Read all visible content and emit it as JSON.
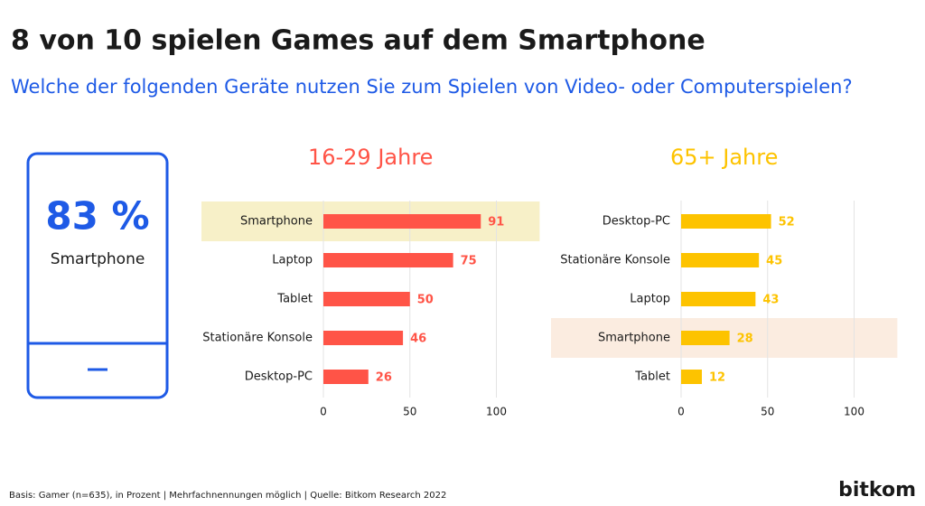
{
  "title": "8 von 10 spielen Games auf dem Smartphone",
  "subtitle": "Welche der folgenden Geräte nutzen Sie zum Spielen von Video- oder Computerspielen?",
  "kpi": {
    "label": "83 %",
    "caption": "Smartphone"
  },
  "footer": "Basis: Gamer (n=635), in Prozent | Mehrfachnennungen möglich | Quelle: Bitkom Research 2022",
  "logo": "bitkom",
  "chart_data": [
    {
      "type": "bar",
      "orientation": "horizontal",
      "title": "16-29 Jahre",
      "categories": [
        "Smartphone",
        "Laptop",
        "Tablet",
        "Stationäre Konsole",
        "Desktop-PC"
      ],
      "values": [
        91,
        75,
        50,
        46,
        26
      ],
      "color": "#ff5447",
      "highlight": "Smartphone",
      "highlight_color": "#f7f0c8",
      "xlim": [
        0,
        125
      ],
      "xticks": [
        0,
        50,
        100
      ],
      "grid": true
    },
    {
      "type": "bar",
      "orientation": "horizontal",
      "title": "65+ Jahre",
      "categories": [
        "Desktop-PC",
        "Stationäre Konsole",
        "Laptop",
        "Smartphone",
        "Tablet"
      ],
      "values": [
        52,
        45,
        43,
        28,
        12
      ],
      "color": "#fdc300",
      "highlight": "Smartphone",
      "highlight_color": "#fbece0",
      "xlim": [
        0,
        125
      ],
      "xticks": [
        0,
        50,
        100
      ],
      "grid": true
    }
  ]
}
